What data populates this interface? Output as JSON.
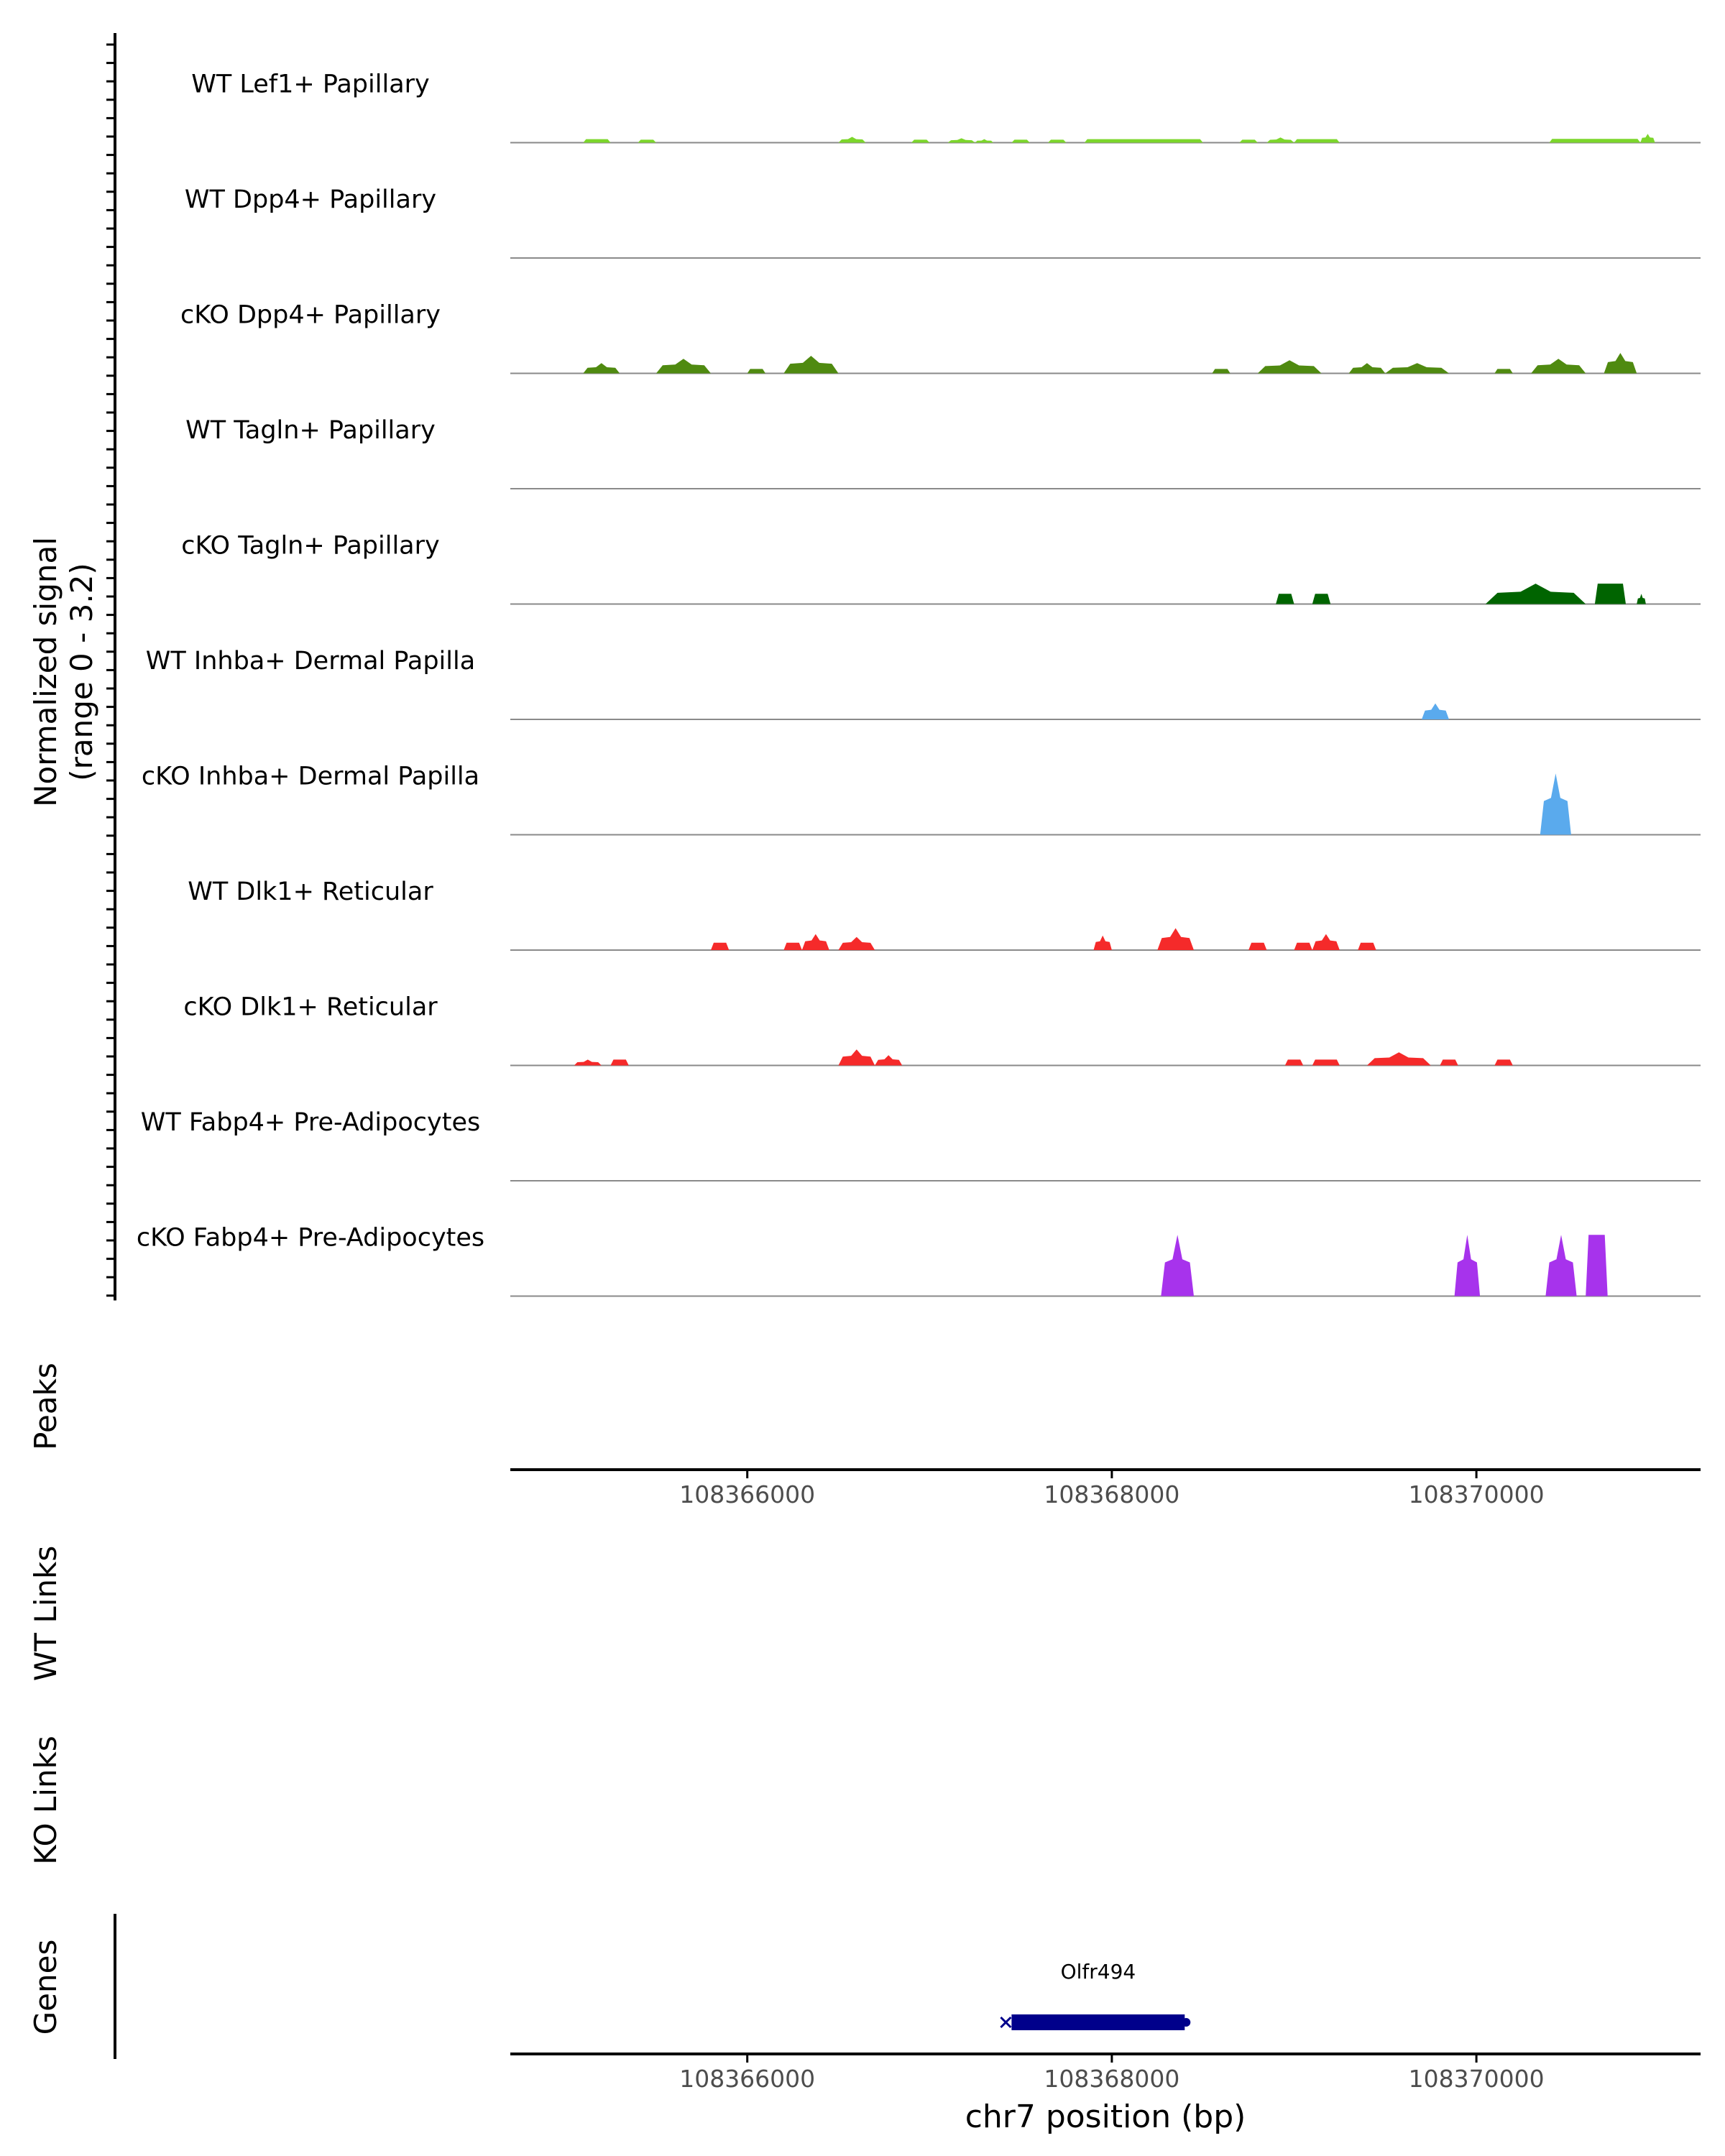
{
  "chart_data": {
    "type": "area",
    "title": "",
    "coverage": {
      "ylabel_line1": "Normalized signal",
      "ylabel_line2": "(range 0 - 3.2)",
      "ylim": [
        0,
        3.2
      ],
      "xlim": [
        108364700,
        108371230
      ],
      "tracks": [
        {
          "name": "WT Lef1+ Papillary",
          "color": "#7cd62b",
          "peaks": [
            [
              108365100,
              108365250,
              0.12,
              "flat"
            ],
            [
              108365400,
              108365500,
              0.1,
              "flat"
            ],
            [
              108366500,
              108366650,
              0.2,
              "tri"
            ],
            [
              108366900,
              108367000,
              0.1,
              "flat"
            ],
            [
              108367100,
              108367250,
              0.15,
              "tri"
            ],
            [
              108367250,
              108367350,
              0.12,
              "tri"
            ],
            [
              108367450,
              108367550,
              0.1,
              "flat"
            ],
            [
              108367650,
              108367750,
              0.1,
              "flat"
            ],
            [
              108367850,
              108368500,
              0.12,
              "flat"
            ],
            [
              108368700,
              108368800,
              0.1,
              "flat"
            ],
            [
              108368850,
              108369000,
              0.18,
              "tri"
            ],
            [
              108369000,
              108369250,
              0.12,
              "flat"
            ],
            [
              108370400,
              108370900,
              0.13,
              "flat"
            ],
            [
              108370900,
              108370980,
              0.3,
              "tri"
            ]
          ]
        },
        {
          "name": "WT Dpp4+ Papillary",
          "color": "#4f8a10",
          "peaks": []
        },
        {
          "name": "cKO Dpp4+ Papillary",
          "color": "#4f8a10",
          "peaks": [
            [
              108365100,
              108365300,
              0.35,
              "tri"
            ],
            [
              108365500,
              108365800,
              0.5,
              "tri"
            ],
            [
              108366000,
              108366100,
              0.15,
              "flat"
            ],
            [
              108366200,
              108366500,
              0.6,
              "tri"
            ],
            [
              108368550,
              108368650,
              0.15,
              "flat"
            ],
            [
              108368800,
              108369150,
              0.45,
              "tri"
            ],
            [
              108369300,
              108369500,
              0.35,
              "tri"
            ],
            [
              108369500,
              108369850,
              0.35,
              "tri"
            ],
            [
              108370100,
              108370200,
              0.15,
              "flat"
            ],
            [
              108370300,
              108370600,
              0.5,
              "tri"
            ],
            [
              108370700,
              108370880,
              0.7,
              "tri"
            ]
          ]
        },
        {
          "name": "WT Tagln+ Papillary",
          "color": "#006400",
          "peaks": []
        },
        {
          "name": "cKO Tagln+ Papillary",
          "color": "#006400",
          "peaks": [
            [
              108368900,
              108369000,
              0.35,
              "flat"
            ],
            [
              108369100,
              108369200,
              0.35,
              "flat"
            ],
            [
              108370050,
              108370600,
              0.7,
              "tri"
            ],
            [
              108370650,
              108370820,
              0.7,
              "flat"
            ],
            [
              108370880,
              108370930,
              0.35,
              "tri"
            ]
          ]
        },
        {
          "name": "WT Inhba+ Dermal Papilla",
          "color": "#5aaaed",
          "peaks": [
            [
              108369700,
              108369850,
              0.55,
              "tri"
            ]
          ]
        },
        {
          "name": "cKO Inhba+ Dermal Papilla",
          "color": "#5aaaed",
          "peaks": [
            [
              108370350,
              108370520,
              2.1,
              "tri"
            ]
          ]
        },
        {
          "name": "WT Dlk1+ Reticular",
          "color": "#f52a2a",
          "peaks": [
            [
              108365800,
              108365900,
              0.25,
              "flat"
            ],
            [
              108366200,
              108366300,
              0.25,
              "flat"
            ],
            [
              108366300,
              108366450,
              0.55,
              "tri"
            ],
            [
              108366500,
              108366700,
              0.45,
              "tri"
            ],
            [
              108367900,
              108368000,
              0.5,
              "tri"
            ],
            [
              108368250,
              108368450,
              0.75,
              "tri"
            ],
            [
              108368750,
              108368850,
              0.25,
              "flat"
            ],
            [
              108369000,
              108369100,
              0.25,
              "flat"
            ],
            [
              108369100,
              108369250,
              0.55,
              "tri"
            ],
            [
              108369350,
              108369450,
              0.25,
              "flat"
            ]
          ]
        },
        {
          "name": "cKO Dlk1+ Reticular",
          "color": "#f52a2a",
          "peaks": [
            [
              108365050,
              108365200,
              0.2,
              "tri"
            ],
            [
              108365250,
              108365350,
              0.2,
              "flat"
            ],
            [
              108366500,
              108366700,
              0.55,
              "tri"
            ],
            [
              108366700,
              108366850,
              0.35,
              "tri"
            ],
            [
              108368950,
              108369050,
              0.2,
              "flat"
            ],
            [
              108369100,
              108369250,
              0.2,
              "flat"
            ],
            [
              108369400,
              108369750,
              0.45,
              "tri"
            ],
            [
              108369800,
              108369900,
              0.2,
              "flat"
            ],
            [
              108370100,
              108370200,
              0.2,
              "flat"
            ]
          ]
        },
        {
          "name": "WT Fabp4+ Pre-Adipocytes",
          "color": "#a733ec",
          "peaks": []
        },
        {
          "name": "cKO Fabp4+ Pre-Adipocytes",
          "color": "#a733ec",
          "peaks": [
            [
              108368270,
              108368450,
              2.1,
              "tri"
            ],
            [
              108369880,
              108370020,
              2.1,
              "tri"
            ],
            [
              108370380,
              108370550,
              2.1,
              "tri"
            ],
            [
              108370600,
              108370720,
              2.1,
              "flat"
            ]
          ]
        }
      ]
    },
    "peaks_label": "Peaks",
    "wt_links_label": "WT Links",
    "ko_links_label": "KO Links",
    "genes_label": "Genes",
    "x_ticks": [
      108366000,
      108368000,
      108370000
    ],
    "x_tick_labels": [
      "108366000",
      "108368000",
      "108370000"
    ],
    "xlabel": "chr7 position (bp)",
    "gene": {
      "name": "Olfr494",
      "start": 108367450,
      "end": 108368400,
      "strand": "-",
      "color": "#00008b"
    }
  }
}
